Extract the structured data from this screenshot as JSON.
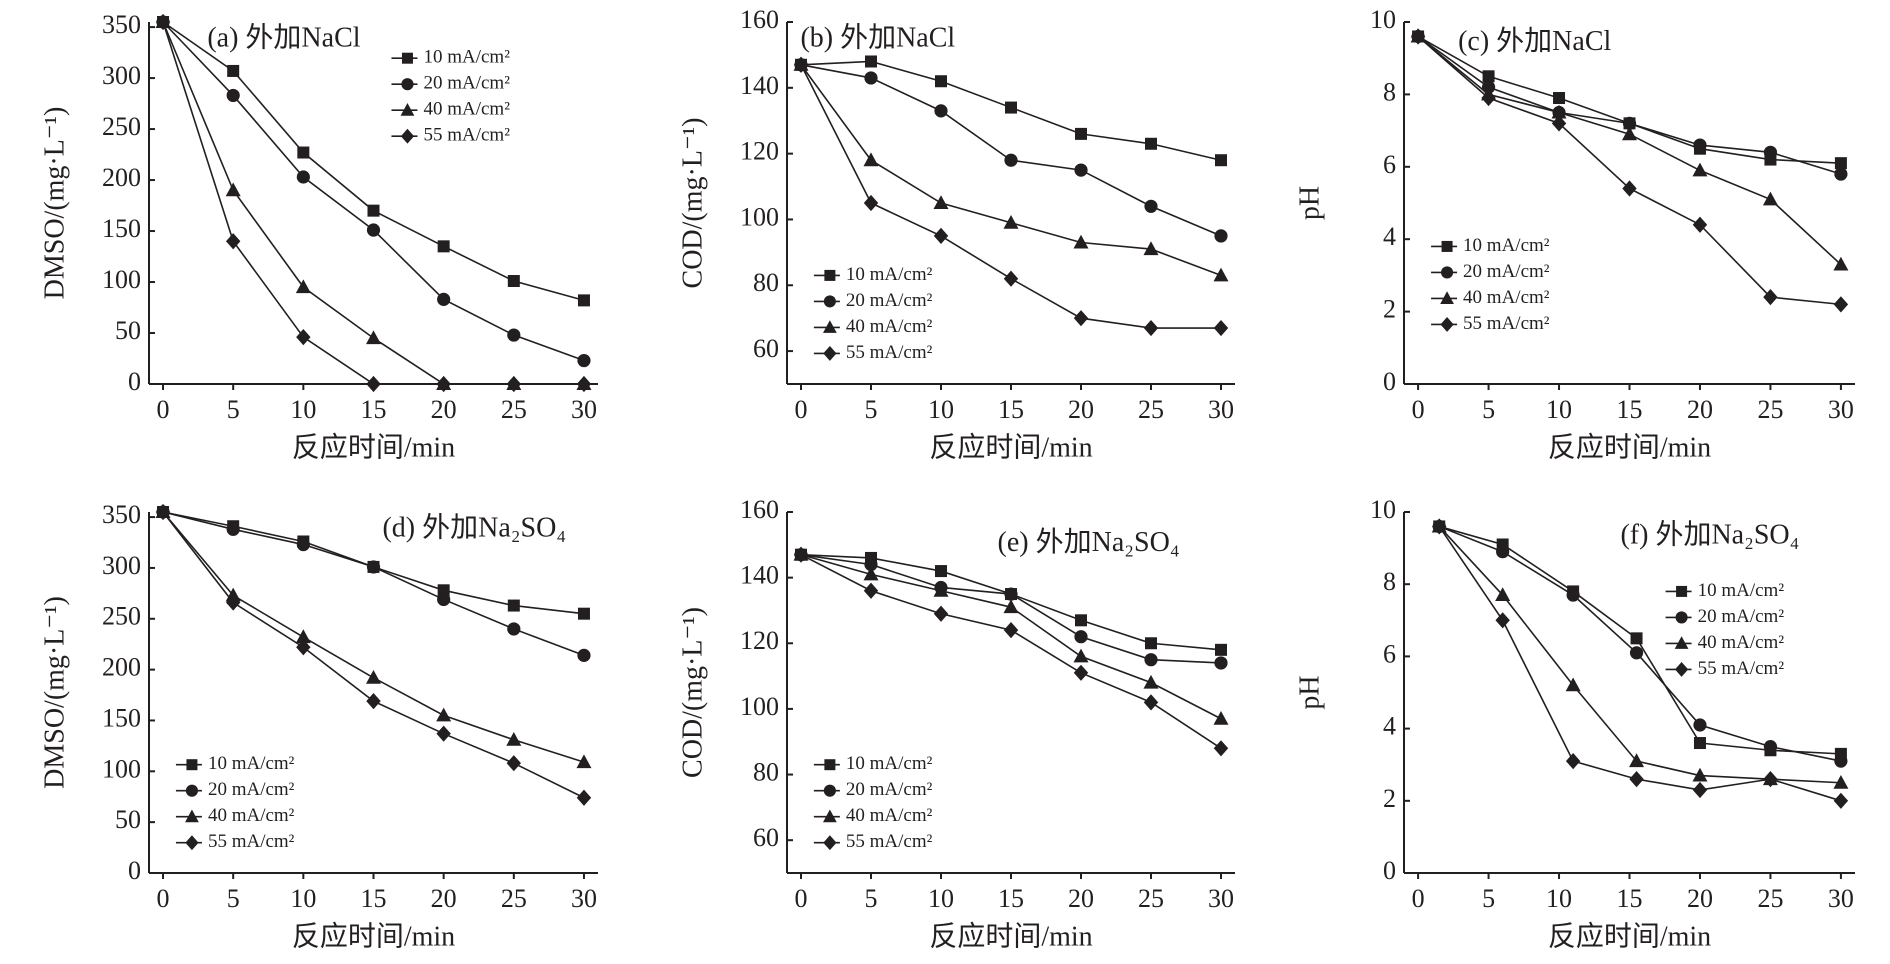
{
  "chart_data": [
    {
      "type": "line",
      "title": "(a)  外加NaCl",
      "ylabel": "DMSO/(mg·L⁻¹)",
      "xlabel": "反应时间/min",
      "legend": "upper right",
      "x": [
        0,
        5,
        10,
        15,
        20,
        25,
        30
      ],
      "xlim": [
        -1,
        31
      ],
      "xticks": [
        0,
        5,
        10,
        15,
        20,
        25,
        30
      ],
      "ylim": [
        0,
        355
      ],
      "yticks": [
        0,
        50,
        100,
        150,
        200,
        250,
        300,
        350
      ],
      "series": [
        {
          "name": "10 mA/cm²",
          "color": "#231f20",
          "marker": "square",
          "values": [
            355,
            307,
            227,
            170,
            135,
            101,
            82
          ]
        },
        {
          "name": "20 mA/cm²",
          "color": "#231f20",
          "marker": "circle",
          "values": [
            355,
            283,
            203,
            151,
            83,
            48,
            23
          ]
        },
        {
          "name": "40 mA/cm²",
          "color": "#231f20",
          "marker": "triangle",
          "values": [
            355,
            190,
            95,
            45,
            0,
            0,
            0
          ]
        },
        {
          "name": "55 mA/cm²",
          "color": "#231f20",
          "marker": "diamond",
          "values": [
            355,
            140,
            46,
            0,
            0,
            0,
            0
          ]
        }
      ]
    },
    {
      "type": "line",
      "title": "(b)  外加NaCl",
      "ylabel": "COD/(mg·L⁻¹)",
      "xlabel": "反应时间/min",
      "legend": "lower left",
      "x": [
        0,
        5,
        10,
        15,
        20,
        25,
        30
      ],
      "xlim": [
        -1,
        31
      ],
      "xticks": [
        0,
        5,
        10,
        15,
        20,
        25,
        30
      ],
      "ylim": [
        50,
        160
      ],
      "yticks": [
        60,
        80,
        100,
        120,
        140,
        160
      ],
      "series": [
        {
          "name": "10 mA/cm²",
          "color": "#231f20",
          "marker": "square",
          "values": [
            147,
            148,
            142,
            134,
            126,
            123,
            118
          ]
        },
        {
          "name": "20 mA/cm²",
          "color": "#231f20",
          "marker": "circle",
          "values": [
            147,
            143,
            133,
            118,
            115,
            104,
            95
          ]
        },
        {
          "name": "40 mA/cm²",
          "color": "#231f20",
          "marker": "triangle",
          "values": [
            147,
            118,
            105,
            99,
            93,
            91,
            83
          ]
        },
        {
          "name": "55 mA/cm²",
          "color": "#231f20",
          "marker": "diamond",
          "values": [
            147,
            105,
            95,
            82,
            70,
            67,
            67
          ]
        }
      ]
    },
    {
      "type": "line",
      "title": "(c)  外加NaCl",
      "ylabel": "pH",
      "xlabel": "反应时间/min",
      "legend": "center left",
      "x": [
        0,
        5,
        10,
        15,
        20,
        25,
        30
      ],
      "xlim": [
        -1,
        31
      ],
      "xticks": [
        0,
        5,
        10,
        15,
        20,
        25,
        30
      ],
      "ylim": [
        0,
        10
      ],
      "yticks": [
        0,
        2,
        4,
        6,
        8,
        10
      ],
      "series": [
        {
          "name": "10 mA/cm²",
          "color": "#231f20",
          "marker": "square",
          "values": [
            9.6,
            8.5,
            7.9,
            7.2,
            6.5,
            6.2,
            6.1
          ]
        },
        {
          "name": "20 mA/cm²",
          "color": "#231f20",
          "marker": "circle",
          "values": [
            9.6,
            8.2,
            7.5,
            7.2,
            6.6,
            6.4,
            5.8
          ]
        },
        {
          "name": "40 mA/cm²",
          "color": "#231f20",
          "marker": "triangle",
          "values": [
            9.6,
            8.0,
            7.5,
            6.9,
            5.9,
            5.1,
            3.3
          ]
        },
        {
          "name": "55 mA/cm²",
          "color": "#231f20",
          "marker": "diamond",
          "values": [
            9.6,
            7.9,
            7.2,
            5.4,
            4.4,
            2.4,
            2.2
          ]
        }
      ]
    },
    {
      "type": "line",
      "title": "(d)  外加Na₂SO₄",
      "ylabel": "DMSO/(mg·L⁻¹)",
      "xlabel": "反应时间/min",
      "legend": "lower left",
      "x": [
        0,
        5,
        10,
        15,
        20,
        25,
        30
      ],
      "xlim": [
        -1,
        31
      ],
      "xticks": [
        0,
        5,
        10,
        15,
        20,
        25,
        30
      ],
      "ylim": [
        0,
        355
      ],
      "yticks": [
        0,
        50,
        100,
        150,
        200,
        250,
        300,
        350
      ],
      "series": [
        {
          "name": "10 mA/cm²",
          "color": "#231f20",
          "marker": "square",
          "values": [
            355,
            341,
            326,
            301,
            278,
            263,
            255
          ]
        },
        {
          "name": "20 mA/cm²",
          "color": "#231f20",
          "marker": "circle",
          "values": [
            355,
            338,
            323,
            301,
            269,
            240,
            214
          ]
        },
        {
          "name": "40 mA/cm²",
          "color": "#231f20",
          "marker": "triangle",
          "values": [
            355,
            273,
            232,
            192,
            155,
            131,
            109
          ]
        },
        {
          "name": "55 mA/cm²",
          "color": "#231f20",
          "marker": "diamond",
          "values": [
            355,
            266,
            222,
            169,
            137,
            108,
            74
          ]
        }
      ]
    },
    {
      "type": "line",
      "title": "(e)  外加Na₂SO₄",
      "ylabel": "COD/(mg·L⁻¹)",
      "xlabel": "反应时间/min",
      "legend": "lower left",
      "x": [
        0,
        5,
        10,
        15,
        20,
        25,
        30
      ],
      "xlim": [
        -1,
        31
      ],
      "xticks": [
        0,
        5,
        10,
        15,
        20,
        25,
        30
      ],
      "ylim": [
        50,
        160
      ],
      "yticks": [
        60,
        80,
        100,
        120,
        140,
        160
      ],
      "series": [
        {
          "name": "10 mA/cm²",
          "color": "#231f20",
          "marker": "square",
          "values": [
            147,
            146,
            142,
            135,
            127,
            120,
            118
          ]
        },
        {
          "name": "20 mA/cm²",
          "color": "#231f20",
          "marker": "circle",
          "values": [
            147,
            144,
            137,
            135,
            122,
            115,
            114
          ]
        },
        {
          "name": "40 mA/cm²",
          "color": "#231f20",
          "marker": "triangle",
          "values": [
            147,
            141,
            136,
            131,
            116,
            108,
            97
          ]
        },
        {
          "name": "55 mA/cm²",
          "color": "#231f20",
          "marker": "diamond",
          "values": [
            147,
            136,
            129,
            124,
            111,
            102,
            88
          ]
        }
      ]
    },
    {
      "type": "line",
      "title": "(f)  外加Na₂SO₄",
      "ylabel": "pH",
      "xlabel": "反应时间/min",
      "legend": "center right",
      "x": [
        1.5,
        6,
        11,
        15.5,
        20,
        25,
        30
      ],
      "xlim": [
        -1,
        31
      ],
      "xticks": [
        0,
        5,
        10,
        15,
        20,
        25,
        30
      ],
      "ylim": [
        0,
        10
      ],
      "yticks": [
        0,
        2,
        4,
        6,
        8,
        10
      ],
      "series": [
        {
          "name": "10 mA/cm²",
          "color": "#231f20",
          "marker": "square",
          "values": [
            9.6,
            9.1,
            7.8,
            6.5,
            3.6,
            3.4,
            3.3
          ]
        },
        {
          "name": "20 mA/cm²",
          "color": "#231f20",
          "marker": "circle",
          "values": [
            9.6,
            8.9,
            7.7,
            6.1,
            4.1,
            3.5,
            3.1
          ]
        },
        {
          "name": "40 mA/cm²",
          "color": "#231f20",
          "marker": "triangle",
          "values": [
            9.6,
            7.7,
            5.2,
            3.1,
            2.7,
            2.6,
            2.5
          ]
        },
        {
          "name": "55 mA/cm²",
          "color": "#231f20",
          "marker": "diamond",
          "values": [
            9.6,
            7.0,
            3.1,
            2.6,
            2.3,
            2.6,
            2.0
          ]
        }
      ]
    }
  ]
}
